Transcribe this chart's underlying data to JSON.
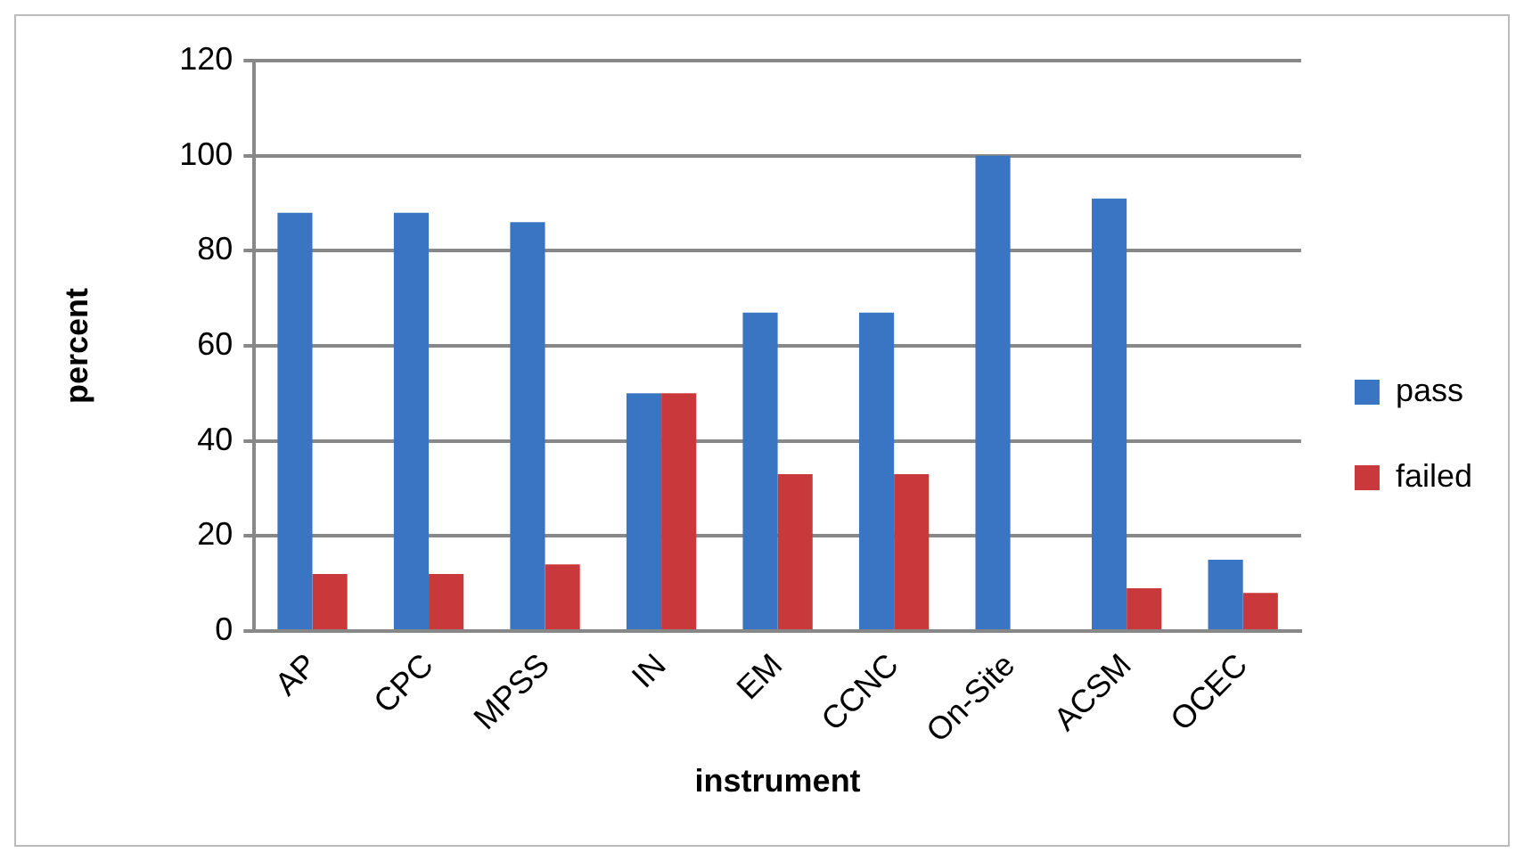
{
  "chart_data": {
    "type": "bar",
    "xlabel": "instrument",
    "ylabel": "percent",
    "categories": [
      "AP",
      "CPC",
      "MPSS",
      "IN",
      "EM",
      "CCNC",
      "On-Site",
      "ACSM",
      "OCEC"
    ],
    "series": [
      {
        "name": "pass",
        "color": "#3a75c4",
        "values": [
          88,
          88,
          86,
          50,
          67,
          67,
          100,
          91,
          15
        ]
      },
      {
        "name": "failed",
        "color": "#c9383a",
        "values": [
          12,
          12,
          14,
          50,
          33,
          33,
          0,
          9,
          8
        ]
      }
    ],
    "ylim": [
      0,
      120
    ],
    "yticks": [
      0,
      20,
      40,
      60,
      80,
      100,
      120
    ],
    "grid": "y",
    "legend": "right"
  }
}
